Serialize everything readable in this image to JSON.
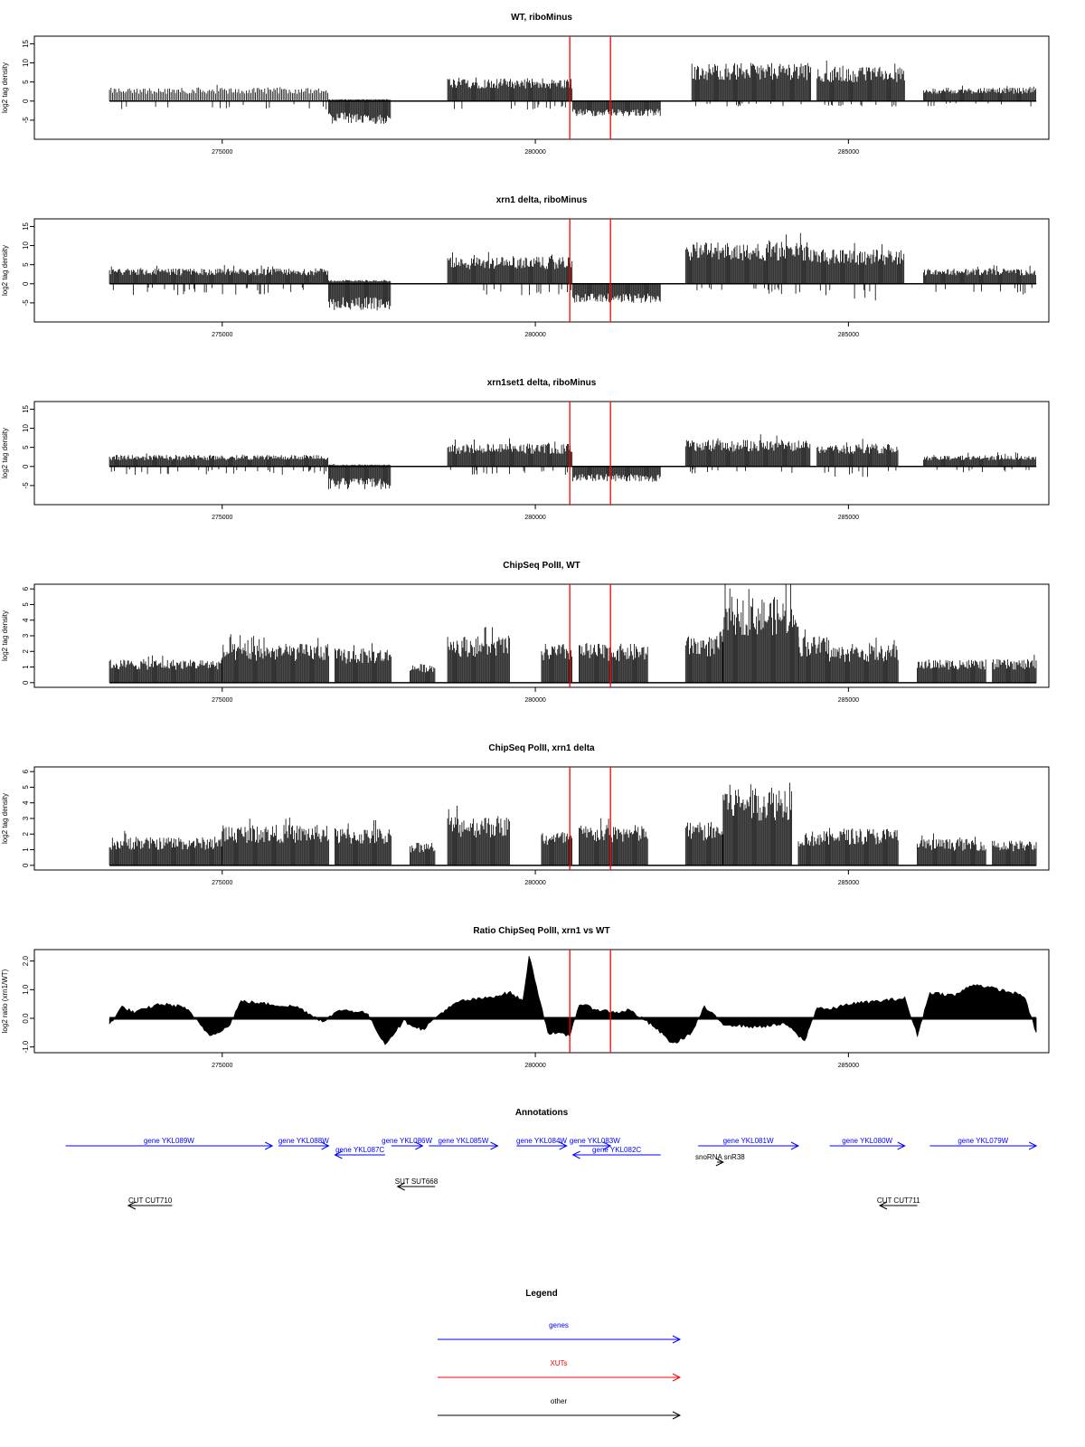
{
  "colors": {
    "gene": "#0000ff",
    "xut": "#ff0000",
    "other": "#000000",
    "marker": "#ff0000",
    "signal": "#000000"
  },
  "genome": {
    "xlim": [
      272000,
      288200
    ],
    "ticks": [
      275000,
      280000,
      285000
    ],
    "tick_labels": [
      "275000",
      "280000",
      "285000"
    ]
  },
  "markers": [
    280550,
    281200
  ],
  "chart_data": [
    {
      "type": "bar",
      "title": "WT, riboMinus",
      "ylabel": "log2 tag density",
      "ylim": [
        -10,
        17
      ],
      "yticks": [
        -5,
        0,
        5,
        10,
        15
      ],
      "ytick_labels": [
        "-5",
        "0",
        "5",
        "10",
        "15"
      ],
      "segments": [
        {
          "start": 273200,
          "end": 276700,
          "plus": 3.5,
          "minus": 1.5,
          "note": "sparse"
        },
        {
          "start": 276700,
          "end": 277700,
          "plus": 0.5,
          "minus": -6
        },
        {
          "start": 278600,
          "end": 280600,
          "plus": 6,
          "minus": 1.5
        },
        {
          "start": 280600,
          "end": 282000,
          "plus": 0,
          "minus": -4
        },
        {
          "start": 282500,
          "end": 284400,
          "plus": 10,
          "minus": 1
        },
        {
          "start": 284500,
          "end": 285900,
          "plus": 9,
          "minus": 1
        },
        {
          "start": 286200,
          "end": 288000,
          "plus": 3.5,
          "minus": 1
        }
      ]
    },
    {
      "type": "bar",
      "title": "xrn1 delta, riboMinus",
      "ylabel": "log2 tag density",
      "ylim": [
        -10,
        17
      ],
      "yticks": [
        -5,
        0,
        5,
        10,
        15
      ],
      "ytick_labels": [
        "-5",
        "0",
        "5",
        "10",
        "15"
      ],
      "segments": [
        {
          "start": 273200,
          "end": 276700,
          "plus": 4,
          "minus": 2
        },
        {
          "start": 276700,
          "end": 277700,
          "plus": 1,
          "minus": -7
        },
        {
          "start": 278600,
          "end": 280600,
          "plus": 7,
          "minus": 2
        },
        {
          "start": 280600,
          "end": 282000,
          "plus": 0,
          "minus": -5
        },
        {
          "start": 282400,
          "end": 284400,
          "plus": 11,
          "minus": 2
        },
        {
          "start": 284400,
          "end": 285900,
          "plus": 9,
          "minus": 3
        },
        {
          "start": 286200,
          "end": 288000,
          "plus": 4,
          "minus": 2
        }
      ]
    },
    {
      "type": "bar",
      "title": "xrn1set1 delta, riboMinus",
      "ylabel": "log2 tag density",
      "ylim": [
        -10,
        17
      ],
      "yticks": [
        -5,
        0,
        5,
        10,
        15
      ],
      "ytick_labels": [
        "-5",
        "0",
        "5",
        "10",
        "15"
      ],
      "segments": [
        {
          "start": 273200,
          "end": 276700,
          "plus": 3,
          "minus": 1.5
        },
        {
          "start": 276700,
          "end": 277700,
          "plus": 0.5,
          "minus": -6
        },
        {
          "start": 278600,
          "end": 280600,
          "plus": 6,
          "minus": 1.5
        },
        {
          "start": 280600,
          "end": 282000,
          "plus": 0,
          "minus": -4
        },
        {
          "start": 282400,
          "end": 284400,
          "plus": 7,
          "minus": 1.5
        },
        {
          "start": 284500,
          "end": 285800,
          "plus": 6,
          "minus": 2
        },
        {
          "start": 286200,
          "end": 288000,
          "plus": 3,
          "minus": 1
        }
      ]
    },
    {
      "type": "bar",
      "title": "ChipSeq PolII, WT",
      "ylabel": "log2 tag density",
      "ylim": [
        -0.3,
        6.3
      ],
      "yticks": [
        0,
        1,
        2,
        3,
        4,
        5,
        6
      ],
      "ytick_labels": [
        "0",
        "1",
        "2",
        "3",
        "4",
        "5",
        "6"
      ],
      "segments": [
        {
          "start": 273200,
          "end": 275000,
          "plus": 1.5
        },
        {
          "start": 275000,
          "end": 276700,
          "plus": 2.5
        },
        {
          "start": 276800,
          "end": 277700,
          "plus": 2.2
        },
        {
          "start": 278000,
          "end": 278400,
          "plus": 1.2
        },
        {
          "start": 278600,
          "end": 279600,
          "plus": 3
        },
        {
          "start": 280100,
          "end": 280600,
          "plus": 2.5
        },
        {
          "start": 280700,
          "end": 281800,
          "plus": 2.5
        },
        {
          "start": 282400,
          "end": 283000,
          "plus": 3
        },
        {
          "start": 283000,
          "end": 284200,
          "plus": 5.5
        },
        {
          "start": 284200,
          "end": 284700,
          "plus": 3
        },
        {
          "start": 284700,
          "end": 285800,
          "plus": 2.4
        },
        {
          "start": 286100,
          "end": 287200,
          "plus": 1.5
        },
        {
          "start": 287300,
          "end": 288000,
          "plus": 1.5
        }
      ]
    },
    {
      "type": "bar",
      "title": "ChipSeq PolII, xrn1 delta",
      "ylabel": "log2 tag density",
      "ylim": [
        -0.3,
        6.3
      ],
      "yticks": [
        0,
        1,
        2,
        3,
        4,
        5,
        6
      ],
      "ytick_labels": [
        "0",
        "1",
        "2",
        "3",
        "4",
        "5",
        "6"
      ],
      "segments": [
        {
          "start": 273200,
          "end": 275000,
          "plus": 1.8
        },
        {
          "start": 275000,
          "end": 276700,
          "plus": 2.6
        },
        {
          "start": 276800,
          "end": 277700,
          "plus": 2.4
        },
        {
          "start": 278000,
          "end": 278400,
          "plus": 1.5
        },
        {
          "start": 278600,
          "end": 279600,
          "plus": 3.2
        },
        {
          "start": 280100,
          "end": 280600,
          "plus": 2.2
        },
        {
          "start": 280700,
          "end": 281800,
          "plus": 2.6
        },
        {
          "start": 282400,
          "end": 283000,
          "plus": 2.8
        },
        {
          "start": 283000,
          "end": 284100,
          "plus": 5.2
        },
        {
          "start": 284200,
          "end": 284700,
          "plus": 2.2
        },
        {
          "start": 284700,
          "end": 285800,
          "plus": 2.4
        },
        {
          "start": 286100,
          "end": 287200,
          "plus": 1.7
        },
        {
          "start": 287300,
          "end": 288000,
          "plus": 1.6
        }
      ]
    },
    {
      "type": "area",
      "title": "Ratio ChipSeq PolII, xrn1 vs WT",
      "ylabel": "log2 ratio (xrn1/WT)",
      "ylim": [
        -1.2,
        2.4
      ],
      "yticks": [
        -1,
        0,
        1,
        2
      ],
      "ytick_labels": [
        "-1.0",
        "0.0",
        "1.0",
        "2.0"
      ],
      "x": [
        273200,
        273400,
        273600,
        274000,
        274400,
        274800,
        275100,
        275300,
        275700,
        276200,
        276600,
        276900,
        277300,
        277600,
        277900,
        278200,
        278500,
        278800,
        279200,
        279600,
        279800,
        279900,
        280200,
        280550,
        280700,
        281000,
        281300,
        281500,
        281900,
        282200,
        282500,
        282700,
        283000,
        283500,
        284000,
        284300,
        284500,
        284700,
        285000,
        285500,
        285900,
        286100,
        286300,
        286700,
        287000,
        287400,
        287800,
        288000
      ],
      "y": [
        -0.2,
        0.4,
        0.2,
        0.5,
        0.4,
        -0.6,
        -0.3,
        0.6,
        0.5,
        0.4,
        -0.1,
        0.3,
        0.2,
        -0.9,
        -0.1,
        -0.4,
        0.2,
        0.6,
        0.7,
        0.9,
        0.6,
        2.2,
        -0.5,
        -0.6,
        0.5,
        0.3,
        0.2,
        0.3,
        -0.3,
        -0.9,
        -0.5,
        0.4,
        -0.2,
        -0.3,
        -0.2,
        -0.8,
        0.4,
        0.3,
        0.5,
        0.6,
        0.7,
        -0.6,
        0.9,
        0.8,
        1.2,
        1.0,
        0.8,
        -0.5
      ]
    }
  ],
  "annotations": {
    "title": "Annotations",
    "features": [
      {
        "label": "gene YKL089W",
        "start": 272500,
        "end": 275800,
        "dir": "right",
        "type": "gene",
        "row": 0
      },
      {
        "label": "gene YKL088W",
        "start": 275900,
        "end": 276700,
        "dir": "right",
        "type": "gene",
        "row": 0
      },
      {
        "label": "gene YKL087C",
        "start": 276800,
        "end": 277600,
        "dir": "left",
        "type": "gene",
        "row": 1
      },
      {
        "label": "gene YKL086W",
        "start": 277700,
        "end": 278200,
        "dir": "right",
        "type": "gene",
        "row": 0
      },
      {
        "label": "gene YKL085W",
        "start": 278300,
        "end": 279400,
        "dir": "right",
        "type": "gene",
        "row": 0
      },
      {
        "label": "gene YKL084W",
        "start": 279700,
        "end": 280500,
        "dir": "right",
        "type": "gene",
        "row": 0
      },
      {
        "label": "gene YKL083W",
        "start": 280700,
        "end": 281200,
        "dir": "right",
        "type": "gene",
        "row": 0
      },
      {
        "label": "gene YKL082C",
        "start": 280600,
        "end": 282000,
        "dir": "left",
        "type": "gene",
        "row": 1
      },
      {
        "label": "gene YKL081W",
        "start": 282600,
        "end": 284200,
        "dir": "right",
        "type": "gene",
        "row": 0
      },
      {
        "label": "gene YKL080W",
        "start": 284700,
        "end": 285900,
        "dir": "right",
        "type": "gene",
        "row": 0
      },
      {
        "label": "gene YKL079W",
        "start": 286300,
        "end": 288000,
        "dir": "right",
        "type": "gene",
        "row": 0
      },
      {
        "label": "snoRNA snR38",
        "start": 282900,
        "end": 283000,
        "dir": "right",
        "type": "other",
        "row": 2
      },
      {
        "label": "SUT SUT668",
        "start": 277800,
        "end": 278400,
        "dir": "left",
        "type": "other",
        "row": 3
      },
      {
        "label": "CUT CUT710",
        "start": 273500,
        "end": 274200,
        "dir": "left",
        "type": "other",
        "row": 4
      },
      {
        "label": "CUT CUT711",
        "start": 285500,
        "end": 286100,
        "dir": "left",
        "type": "other",
        "row": 4
      }
    ]
  },
  "legend": {
    "title": "Legend",
    "items": [
      {
        "label": "genes",
        "color": "#0000ff"
      },
      {
        "label": "XUTs",
        "color": "#ff0000"
      },
      {
        "label": "other",
        "color": "#000000"
      }
    ]
  }
}
